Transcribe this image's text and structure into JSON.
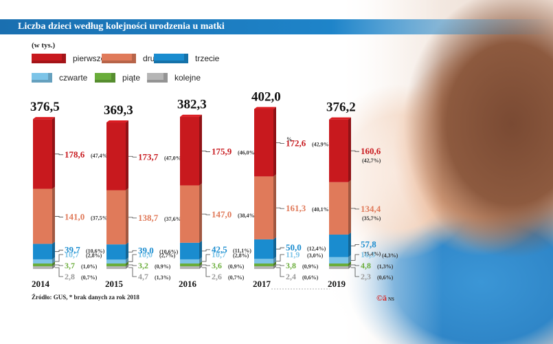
{
  "title": "Liczba dzieci według kolejności urodzenia u matki",
  "unit_label": "(w tys.)",
  "source": "Źródło: GUS, * brak danych za rok 2018",
  "logo": "©ā",
  "logo_sub": "NS",
  "legend": [
    {
      "key": "pierwsze",
      "label": "pierwsze",
      "color": "#c8191e"
    },
    {
      "key": "drugie",
      "label": "drugie",
      "color": "#e07a5a"
    },
    {
      "key": "trzecie",
      "label": "trzecie",
      "color": "#1a8ccf"
    },
    {
      "key": "czwarte",
      "label": "czwarte",
      "color": "#7cc4e8"
    },
    {
      "key": "piate",
      "label": "piąte",
      "color": "#6aad3a"
    },
    {
      "key": "kolejne",
      "label": "kolejne",
      "color": "#b5b5b5"
    }
  ],
  "chart_data": {
    "type": "bar",
    "stacked": true,
    "title": "Liczba dzieci według kolejności urodzenia u matki",
    "ylabel": "(w tys.)",
    "categories": [
      "2014",
      "2015",
      "2016",
      "2017",
      "2019"
    ],
    "totals": [
      "376,5",
      "369,3",
      "382,3",
      "402,0",
      "376,2"
    ],
    "total_values": [
      376.5,
      369.3,
      382.3,
      402.0,
      376.2
    ],
    "annotation_mark": "%",
    "series": [
      {
        "name": "pierwsze",
        "color": "#c8191e",
        "values": [
          178.6,
          173.7,
          175.9,
          172.6,
          160.6
        ],
        "labels": [
          "178,6",
          "173,7",
          "175,9",
          "172,6",
          "160,6"
        ],
        "pcts": [
          "(47,4%)",
          "(47,0%)",
          "(46,0%)",
          "(42,9%)",
          "(42,7%)"
        ]
      },
      {
        "name": "drugie",
        "color": "#e07a5a",
        "values": [
          141.0,
          138.7,
          147.0,
          161.3,
          134.4
        ],
        "labels": [
          "141,0",
          "138,7",
          "147,0",
          "161,3",
          "134,4"
        ],
        "pcts": [
          "(37,5%)",
          "(37,6%)",
          "(38,4%)",
          "(40,1%)",
          "(35,7%)"
        ]
      },
      {
        "name": "trzecie",
        "color": "#1a8ccf",
        "values": [
          39.7,
          39.0,
          42.5,
          50.0,
          57.8
        ],
        "labels": [
          "39,7",
          "39,0",
          "42,5",
          "50,0",
          "57,8"
        ],
        "pcts": [
          "(10,6%)",
          "(10,6%)",
          "(11,1%)",
          "(12,4%)",
          "(15,4%)"
        ]
      },
      {
        "name": "czwarte",
        "color": "#7cc4e8",
        "values": [
          10.7,
          10.0,
          10.7,
          11.9,
          16.3
        ],
        "labels": [
          "10,7",
          "10,0",
          "10,7",
          "11,9",
          "16,3"
        ],
        "pcts": [
          "(2,8%)",
          "(2,7%)",
          "(2,8%)",
          "(3,0%)",
          "(4,3%)"
        ]
      },
      {
        "name": "piąte",
        "color": "#6aad3a",
        "values": [
          3.7,
          3.2,
          3.6,
          3.8,
          4.8
        ],
        "labels": [
          "3,7",
          "3,2",
          "3,6",
          "3,8",
          "4,8"
        ],
        "pcts": [
          "(1,0%)",
          "(0,9%)",
          "(0,9%)",
          "(0,9%)",
          "(1,3%)"
        ]
      },
      {
        "name": "kolejne",
        "color": "#b5b5b5",
        "values": [
          2.8,
          4.7,
          2.6,
          2.4,
          2.3
        ],
        "labels": [
          "2,8",
          "4,7",
          "2,6",
          "2,4",
          "2,3"
        ],
        "pcts": [
          "(0,7%)",
          "(1,3%)",
          "(0,7%)",
          "(0,6%)",
          "(0,6%)"
        ]
      }
    ]
  }
}
